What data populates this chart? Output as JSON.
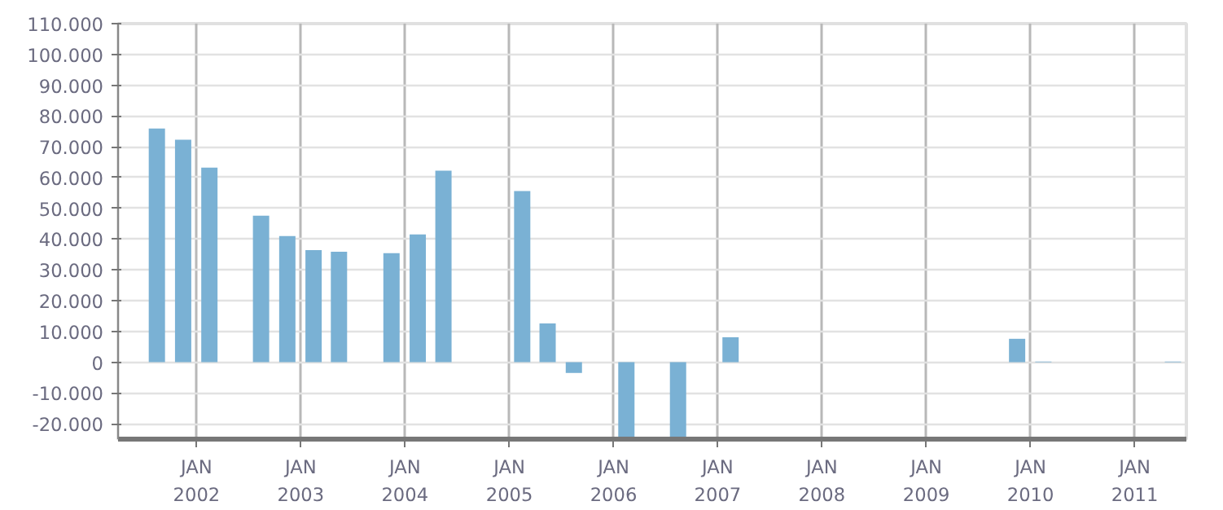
{
  "chart_data": {
    "type": "bar",
    "x": [
      "2001-08-15",
      "2001-11-15",
      "2002-02-15",
      "2002-08-15",
      "2002-11-15",
      "2003-02-15",
      "2003-05-15",
      "2003-11-15",
      "2004-02-15",
      "2004-05-15",
      "2005-02-15",
      "2005-05-15",
      "2005-08-15",
      "2006-02-15",
      "2006-08-15",
      "2007-02-15",
      "2009-11-15",
      "2010-02-15",
      "2011-05-15"
    ],
    "series": [
      {
        "color": "#7ab1d4",
        "values": [
          75900,
          72300,
          63200,
          47600,
          41000,
          36400,
          35900,
          35400,
          41500,
          62200,
          55600,
          12600,
          -3500,
          -24200,
          -24800,
          8100,
          7600,
          200,
          200
        ]
      }
    ],
    "xlim": [
      "2001-04-01",
      "2011-07-01"
    ],
    "xticks": [
      {
        "value": "2002-01-01",
        "label": "JAN\n2002"
      },
      {
        "value": "2003-01-01",
        "label": "JAN\n2003"
      },
      {
        "value": "2004-01-01",
        "label": "JAN\n2004"
      },
      {
        "value": "2005-01-01",
        "label": "JAN\n2005"
      },
      {
        "value": "2006-01-01",
        "label": "JAN\n2006"
      },
      {
        "value": "2007-01-01",
        "label": "JAN\n2007"
      },
      {
        "value": "2008-01-01",
        "label": "JAN\n2008"
      },
      {
        "value": "2009-01-01",
        "label": "JAN\n2009"
      },
      {
        "value": "2010-01-01",
        "label": "JAN\n2010"
      },
      {
        "value": "2011-01-01",
        "label": "JAN\n2011"
      }
    ],
    "ylim": [
      -25000,
      110000
    ],
    "yticks": [
      {
        "value": -20000,
        "label": "-20.000"
      },
      {
        "value": -10000,
        "label": "-10.000"
      },
      0,
      {
        "value": 10000,
        "label": "10.000"
      },
      {
        "value": 20000,
        "label": "20.000"
      },
      {
        "value": 30000,
        "label": "30.000"
      },
      {
        "value": 40000,
        "label": "40.000"
      },
      {
        "value": 50000,
        "label": "50.000"
      },
      {
        "value": 60000,
        "label": "60.000"
      },
      {
        "value": 70000,
        "label": "70.000"
      },
      {
        "value": 80000,
        "label": "80.000"
      },
      {
        "value": 90000,
        "label": "90.000"
      },
      {
        "value": 100000,
        "label": "100.000"
      },
      {
        "value": 110000,
        "label": "110.000"
      }
    ],
    "grid": true
  }
}
